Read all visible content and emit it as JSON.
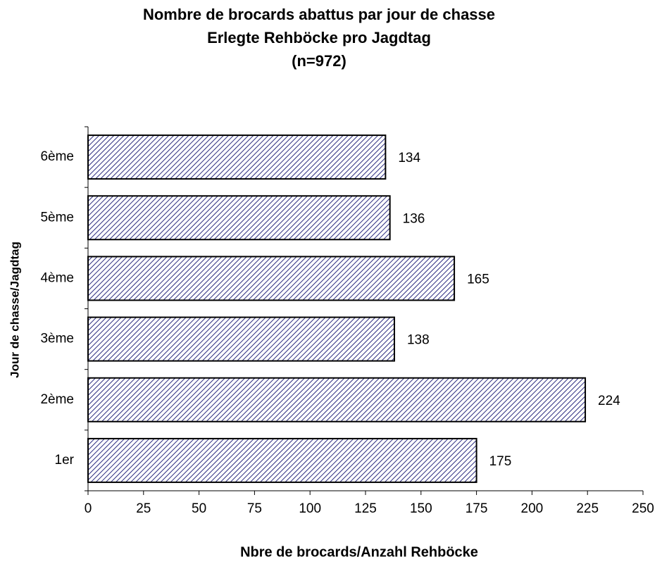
{
  "chart_data": {
    "type": "barh",
    "title": [
      "Nombre de brocards abattus par jour de chasse",
      "Erlegte Rehböcke pro Jagdtag",
      "(n=972)"
    ],
    "xlabel": "Nbre de brocards/Anzahl  Rehböcke",
    "ylabel": "Jour de chasse/Jagdtag",
    "categories": [
      "1er",
      "2ème",
      "3ème",
      "4ème",
      "5ème",
      "6ème"
    ],
    "values": [
      175,
      224,
      138,
      165,
      136,
      134
    ],
    "color": "#2b2b80",
    "xlim": [
      0,
      250
    ],
    "xticks": [
      0,
      25,
      50,
      75,
      100,
      125,
      150,
      175,
      200,
      225,
      250
    ]
  }
}
